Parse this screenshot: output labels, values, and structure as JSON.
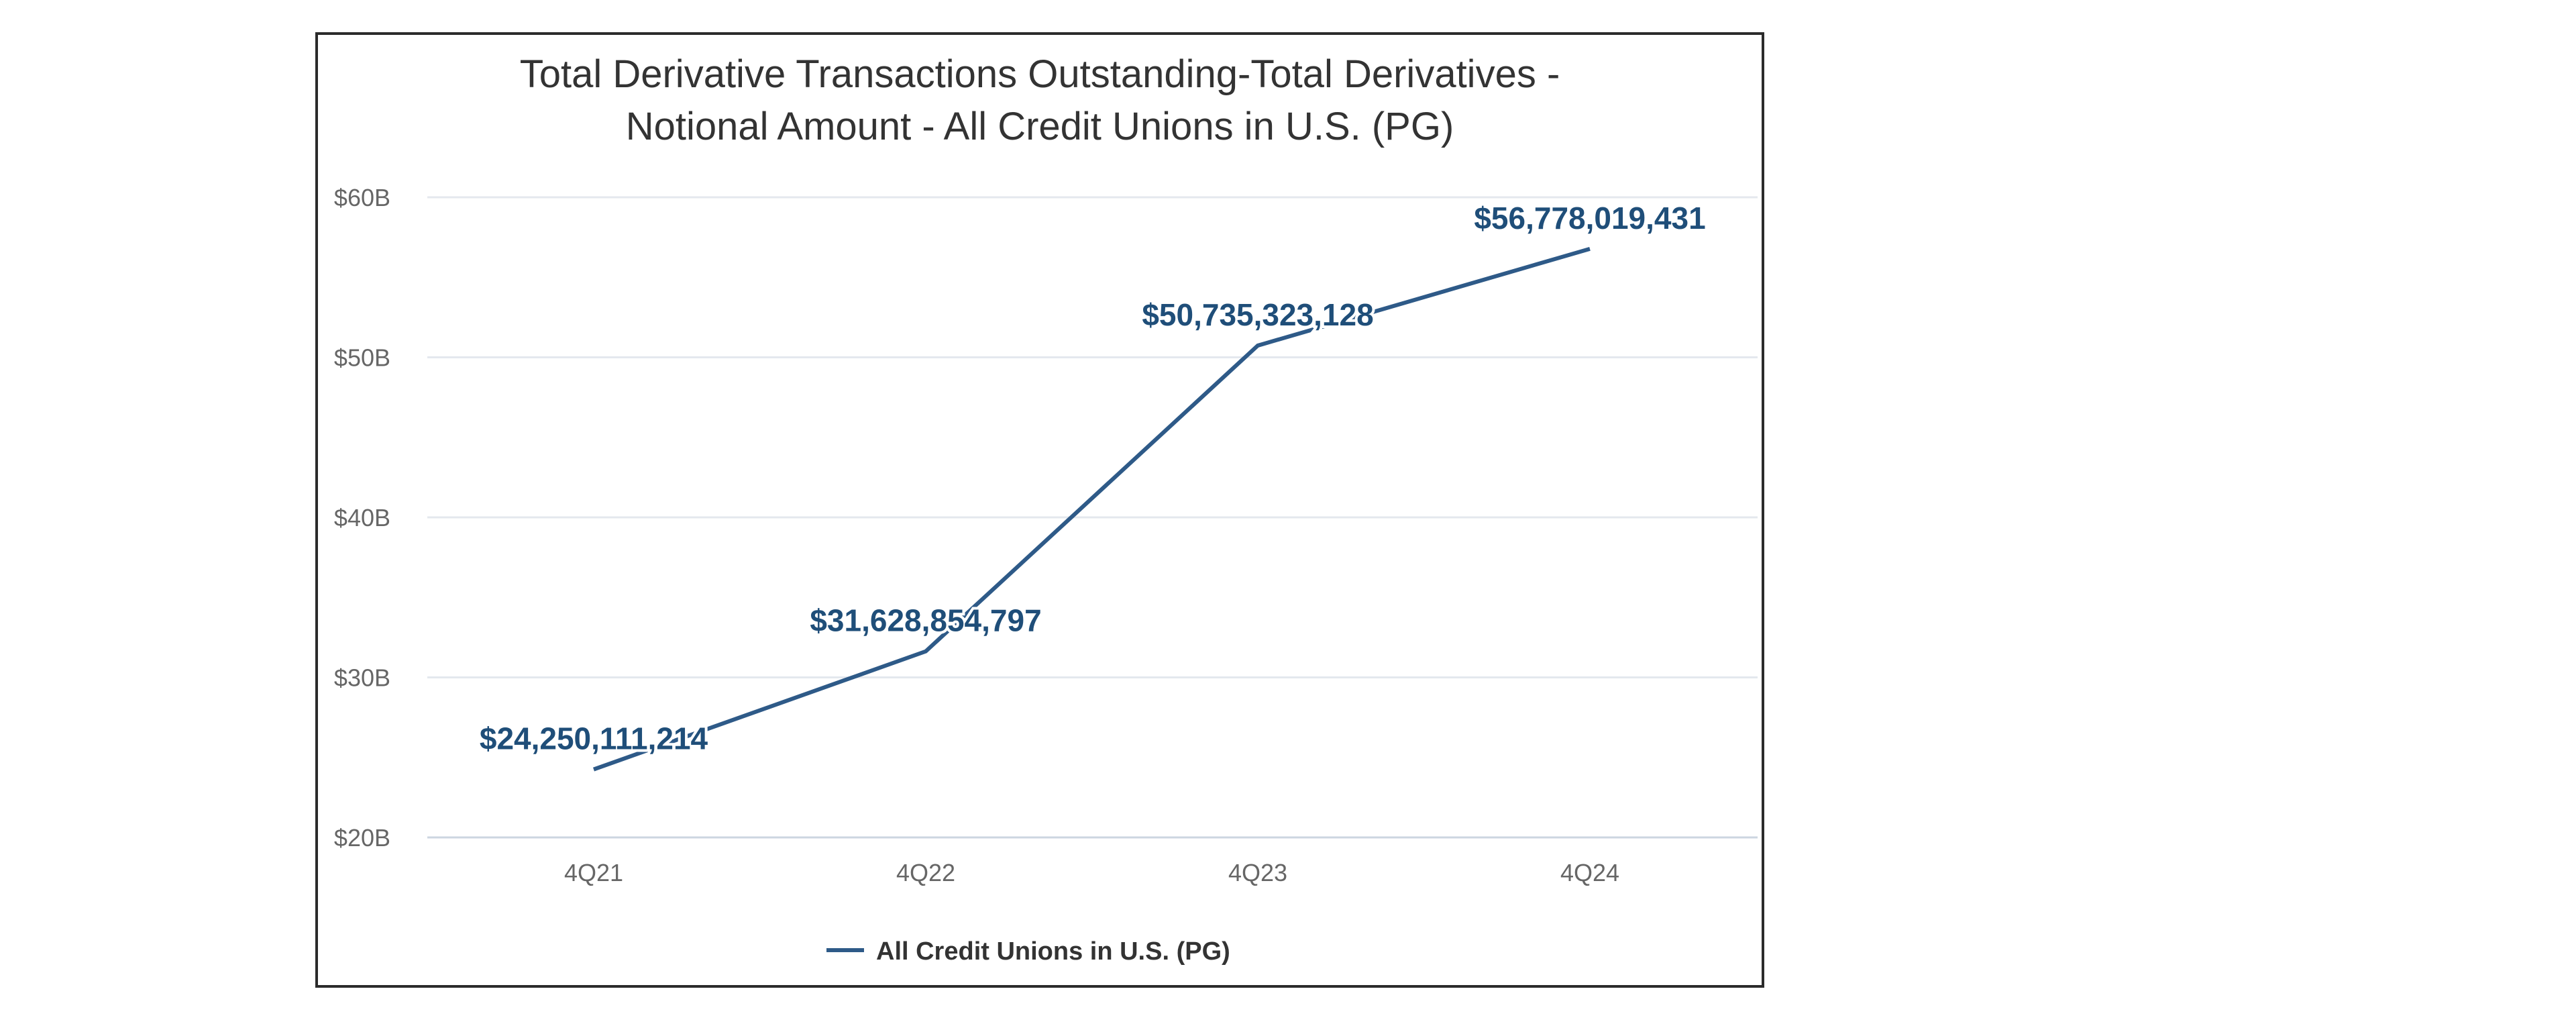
{
  "chart_data": {
    "type": "line",
    "title_lines": [
      "Total Derivative Transactions Outstanding-Total Derivatives -",
      "Notional Amount - All Credit Unions in U.S. (PG)"
    ],
    "categories": [
      "4Q21",
      "4Q22",
      "4Q23",
      "4Q24"
    ],
    "series": [
      {
        "name": "All Credit Unions in U.S. (PG)",
        "values": [
          24250111214,
          31628854797,
          50735323128,
          56778019431
        ],
        "labels": [
          "$24,250,111,214",
          "$31,628,854,797",
          "$50,735,323,128",
          "$56,778,019,431"
        ]
      }
    ],
    "y_ticks": [
      20000000000,
      30000000000,
      40000000000,
      50000000000,
      60000000000
    ],
    "y_tick_labels": [
      "$20B",
      "$30B",
      "$40B",
      "$50B",
      "$60B"
    ],
    "ylim": [
      20000000000,
      60000000000
    ],
    "xlabel": "",
    "ylabel": "",
    "grid": true,
    "legend_position": "bottom",
    "colors": {
      "series": "#2e5a88",
      "data_label": "#1f4e79",
      "grid": "#e4e8ee"
    }
  }
}
